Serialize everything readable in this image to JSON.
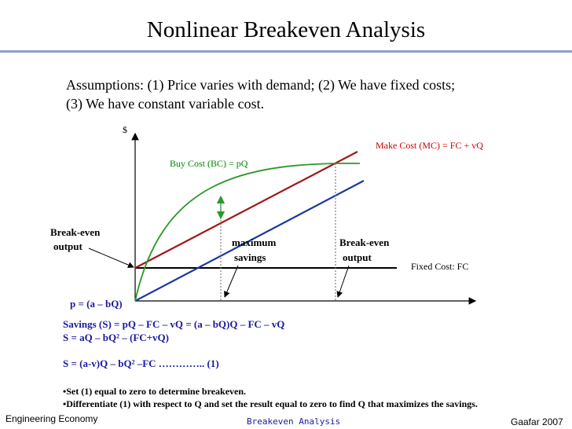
{
  "slide": {
    "title": "Nonlinear Breakeven Analysis",
    "assumptions_line1": "Assumptions:  (1) Price varies with demand; (2) We have fixed costs;",
    "assumptions_line2": "(3) We have constant variable cost."
  },
  "diagram": {
    "y_axis_label": "$",
    "make_cost_label": "Make Cost (MC) = FC + vQ",
    "buy_cost_label": "Buy Cost (BC) = pQ",
    "fixed_cost_label": "Fixed Cost: FC",
    "breakeven_left_line1": "Break-even",
    "breakeven_left_line2": "output",
    "max_savings_line1": "maximum",
    "max_savings_line2": "savings",
    "breakeven_right_line1": "Break-even",
    "breakeven_right_line2": "output",
    "price_function": "p = (a – bQ)",
    "colors": {
      "make_cost": "#a01818",
      "buy_cost": "#2a9a2a",
      "variable": "#1a3a9a",
      "fixed": "#000000"
    }
  },
  "equations": {
    "savings": "Savings (S) = pQ – FC – vQ = (a – bQ)Q – FC – vQ",
    "s_line2": "S = aQ – bQ² – (FC+vQ)",
    "s_line3": "S = (a-v)Q – bQ² –FC ………….. (1)",
    "bullet1": "•Set (1) equal to zero to determine breakeven.",
    "bullet2": "•Differentiate (1) with respect to Q and set the result equal to zero to find Q that maximizes the savings."
  },
  "footer": {
    "left": "Engineering Economy",
    "center": "Breakeven Analysis",
    "right": "Gaafar 2007"
  }
}
